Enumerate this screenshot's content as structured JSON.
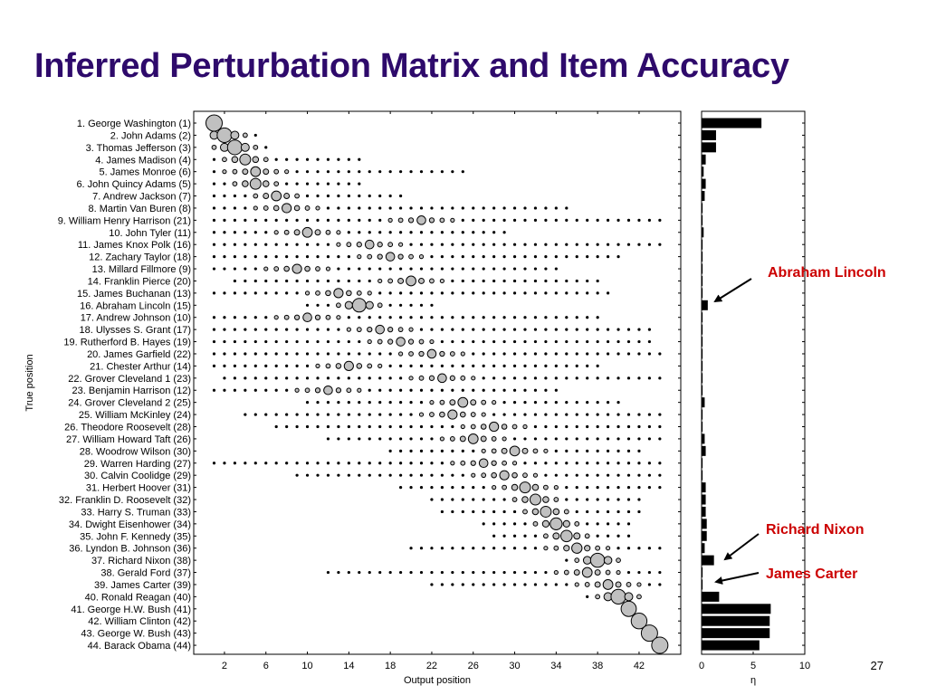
{
  "slide": {
    "title": "Inferred Perturbation Matrix and Item Accuracy",
    "page_number": "27"
  },
  "colors": {
    "title": "#2e0a6b",
    "callout": "#cc0000",
    "marker_fill": "#c0c0c0",
    "bar": "#000000"
  },
  "chart_data": [
    {
      "type": "scatter",
      "xlabel": "Output position",
      "ylabel": "True position",
      "x_ticks": [
        "2",
        "6",
        "10",
        "14",
        "18",
        "22",
        "26",
        "30",
        "34",
        "38",
        "42"
      ],
      "row_labels": [
        "1. George Washington (1)",
        "2. John Adams (2)",
        "3. Thomas Jefferson (3)",
        "4. James Madison (4)",
        "5. James Monroe (6)",
        "6. John Quincy Adams (5)",
        "7. Andrew Jackson (7)",
        "8. Martin Van Buren (8)",
        "9. William Henry Harrison (21)",
        "10. John Tyler (11)",
        "11. James Knox Polk (16)",
        "12. Zachary Taylor (18)",
        "13. Millard Fillmore (9)",
        "14. Franklin Pierce (20)",
        "15. James Buchanan (13)",
        "16. Abraham Lincoln (15)",
        "17. Andrew Johnson (10)",
        "18. Ulysses S. Grant (17)",
        "19. Rutherford B. Hayes (19)",
        "20. James Garfield (22)",
        "21. Chester Arthur (14)",
        "22. Grover Cleveland 1 (23)",
        "23. Benjamin Harrison (12)",
        "24. Grover Cleveland 2 (25)",
        "25. William McKinley (24)",
        "26. Theodore Roosevelt (28)",
        "27. William Howard Taft (26)",
        "28. Woodrow Wilson (30)",
        "29. Warren Harding (27)",
        "30. Calvin Coolidge (29)",
        "31. Herbert Hoover (31)",
        "32. Franklin D. Roosevelt (32)",
        "33. Harry S. Truman (33)",
        "34. Dwight Eisenhower (34)",
        "35. John F. Kennedy (35)",
        "36. Lyndon B. Johnson (36)",
        "37. Richard Nixon (38)",
        "38. Gerald Ford (37)",
        "39. James Carter (39)",
        "40. Ronald Reagan (40)",
        "41. George H.W. Bush (41)",
        "42. William Clinton (42)",
        "43. George W. Bush (43)",
        "44. Barack Obama (44)"
      ],
      "rows": [
        {
          "span": [
            1,
            1
          ],
          "peak": 1,
          "peak_size": 1.0
        },
        {
          "span": [
            1,
            5
          ],
          "peak": 2,
          "peak_size": 0.85
        },
        {
          "span": [
            1,
            6
          ],
          "peak": 3,
          "peak_size": 0.85
        },
        {
          "span": [
            1,
            15
          ],
          "peak": 4,
          "peak_size": 0.5
        },
        {
          "span": [
            1,
            25
          ],
          "peak": 5,
          "peak_size": 0.4
        },
        {
          "span": [
            1,
            15
          ],
          "peak": 5,
          "peak_size": 0.5
        },
        {
          "span": [
            1,
            19
          ],
          "peak": 7,
          "peak_size": 0.4
        },
        {
          "span": [
            1,
            35
          ],
          "peak": 8,
          "peak_size": 0.35
        },
        {
          "span": [
            1,
            44
          ],
          "peak": 21,
          "peak_size": 0.3
        },
        {
          "span": [
            1,
            29
          ],
          "peak": 10,
          "peak_size": 0.4
        },
        {
          "span": [
            1,
            44
          ],
          "peak": 16,
          "peak_size": 0.3
        },
        {
          "span": [
            1,
            40
          ],
          "peak": 18,
          "peak_size": 0.3
        },
        {
          "span": [
            1,
            34
          ],
          "peak": 9,
          "peak_size": 0.35
        },
        {
          "span": [
            3,
            38
          ],
          "peak": 20,
          "peak_size": 0.4
        },
        {
          "span": [
            1,
            39
          ],
          "peak": 13,
          "peak_size": 0.35
        },
        {
          "span": [
            10,
            22
          ],
          "peak": 15,
          "peak_size": 0.75
        },
        {
          "span": [
            1,
            38
          ],
          "peak": 10,
          "peak_size": 0.3
        },
        {
          "span": [
            1,
            43
          ],
          "peak": 17,
          "peak_size": 0.3
        },
        {
          "span": [
            1,
            43
          ],
          "peak": 19,
          "peak_size": 0.3
        },
        {
          "span": [
            1,
            44
          ],
          "peak": 22,
          "peak_size": 0.3
        },
        {
          "span": [
            1,
            38
          ],
          "peak": 14,
          "peak_size": 0.35
        },
        {
          "span": [
            2,
            44
          ],
          "peak": 23,
          "peak_size": 0.3
        },
        {
          "span": [
            1,
            34
          ],
          "peak": 12,
          "peak_size": 0.3
        },
        {
          "span": [
            10,
            40
          ],
          "peak": 25,
          "peak_size": 0.4
        },
        {
          "span": [
            4,
            44
          ],
          "peak": 24,
          "peak_size": 0.35
        },
        {
          "span": [
            7,
            44
          ],
          "peak": 28,
          "peak_size": 0.35
        },
        {
          "span": [
            12,
            44
          ],
          "peak": 26,
          "peak_size": 0.4
        },
        {
          "span": [
            18,
            42
          ],
          "peak": 30,
          "peak_size": 0.4
        },
        {
          "span": [
            1,
            44
          ],
          "peak": 27,
          "peak_size": 0.3
        },
        {
          "span": [
            9,
            44
          ],
          "peak": 29,
          "peak_size": 0.35
        },
        {
          "span": [
            19,
            44
          ],
          "peak": 31,
          "peak_size": 0.5
        },
        {
          "span": [
            22,
            42
          ],
          "peak": 32,
          "peak_size": 0.5
        },
        {
          "span": [
            23,
            42
          ],
          "peak": 33,
          "peak_size": 0.5
        },
        {
          "span": [
            27,
            41
          ],
          "peak": 34,
          "peak_size": 0.6
        },
        {
          "span": [
            28,
            41
          ],
          "peak": 35,
          "peak_size": 0.55
        },
        {
          "span": [
            20,
            44
          ],
          "peak": 36,
          "peak_size": 0.45
        },
        {
          "span": [
            35,
            40
          ],
          "peak": 38,
          "peak_size": 0.8
        },
        {
          "span": [
            12,
            44
          ],
          "peak": 37,
          "peak_size": 0.4
        },
        {
          "span": [
            22,
            44
          ],
          "peak": 39,
          "peak_size": 0.4
        },
        {
          "span": [
            37,
            42
          ],
          "peak": 40,
          "peak_size": 0.85
        },
        {
          "span": [
            41,
            41
          ],
          "peak": 41,
          "peak_size": 0.9
        },
        {
          "span": [
            42,
            42
          ],
          "peak": 42,
          "peak_size": 0.95
        },
        {
          "span": [
            43,
            43
          ],
          "peak": 43,
          "peak_size": 1.0
        },
        {
          "span": [
            44,
            44
          ],
          "peak": 44,
          "peak_size": 1.0
        }
      ]
    },
    {
      "type": "bar",
      "orientation": "horizontal",
      "xlabel": "η",
      "xlim": [
        0,
        10
      ],
      "x_ticks": [
        "0",
        "5",
        "10"
      ],
      "values": [
        5.8,
        1.4,
        1.4,
        0.4,
        0.2,
        0.4,
        0.3,
        0.1,
        0.1,
        0.2,
        0.1,
        0.1,
        0.1,
        0.1,
        0.1,
        0.6,
        0.1,
        0.1,
        0.1,
        0.1,
        0.1,
        0.1,
        0.1,
        0.3,
        0.1,
        0.1,
        0.3,
        0.4,
        0.1,
        0.1,
        0.4,
        0.4,
        0.4,
        0.5,
        0.5,
        0.3,
        1.2,
        0.1,
        0.1,
        1.7,
        6.7,
        6.6,
        6.6,
        5.6
      ],
      "annotations": [
        {
          "text": "Abraham Lincoln",
          "row": 16
        },
        {
          "text": "Richard Nixon",
          "row": 37
        },
        {
          "text": "James Carter",
          "row": 39
        }
      ]
    }
  ]
}
